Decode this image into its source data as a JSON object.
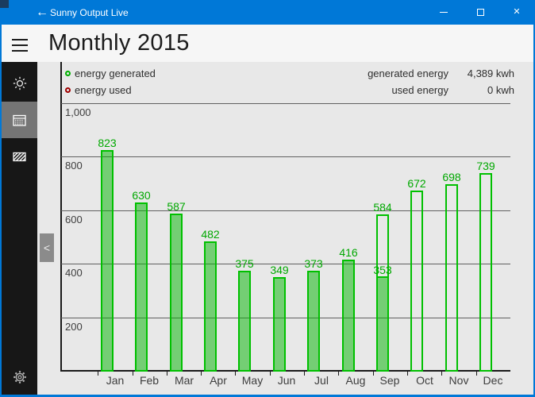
{
  "titlebar": {
    "title": "Sunny Output Live"
  },
  "icons": {
    "back": "←",
    "close": "✕",
    "collapse": "<"
  },
  "header": {
    "title": "Monthly 2015"
  },
  "sidebar": {
    "items": [
      {
        "name": "brightness",
        "selected": false
      },
      {
        "name": "calendar",
        "selected": true
      },
      {
        "name": "solar-panel",
        "selected": false
      },
      {
        "name": "settings",
        "selected": false
      }
    ]
  },
  "legend": {
    "items": [
      {
        "label": "energy generated",
        "color": "#00b000"
      },
      {
        "label": "energy used",
        "color": "#a00000"
      }
    ]
  },
  "stats": {
    "rows": [
      {
        "label": "generated energy",
        "value": "4,389 kwh"
      },
      {
        "label": "used energy",
        "value": "0 kwh"
      }
    ]
  },
  "colors": {
    "accent": "#0078d7",
    "bar_border": "#00c000",
    "bar_fill": "rgba(0,180,0,0.5)",
    "value_label": "#00a800",
    "used_red": "#a00000"
  },
  "chart_data": {
    "type": "bar",
    "title": "Monthly 2015",
    "categories": [
      "Jan",
      "Feb",
      "Mar",
      "Apr",
      "May",
      "Jun",
      "Jul",
      "Aug",
      "Sep",
      "Oct",
      "Nov",
      "Dec"
    ],
    "series": [
      {
        "name": "energy generated",
        "outline_values": [
          823,
          630,
          587,
          482,
          375,
          349,
          373,
          416,
          584,
          672,
          698,
          739
        ],
        "filled_values": [
          823,
          630,
          587,
          482,
          375,
          349,
          373,
          416,
          353,
          0,
          0,
          0
        ],
        "color": "#00c000"
      },
      {
        "name": "energy used",
        "values": [
          0,
          0,
          0,
          0,
          0,
          0,
          0,
          0,
          0,
          0,
          0,
          0
        ],
        "color": "#a00000"
      }
    ],
    "ylim": [
      0,
      1000
    ],
    "yticks": [
      {
        "value": 1000,
        "label": "1,000"
      },
      {
        "value": 800,
        "label": "800"
      },
      {
        "value": 600,
        "label": "600"
      },
      {
        "value": 400,
        "label": "400"
      },
      {
        "value": 200,
        "label": "200"
      }
    ],
    "grid": "horizontal",
    "legend_position": "top-left"
  }
}
